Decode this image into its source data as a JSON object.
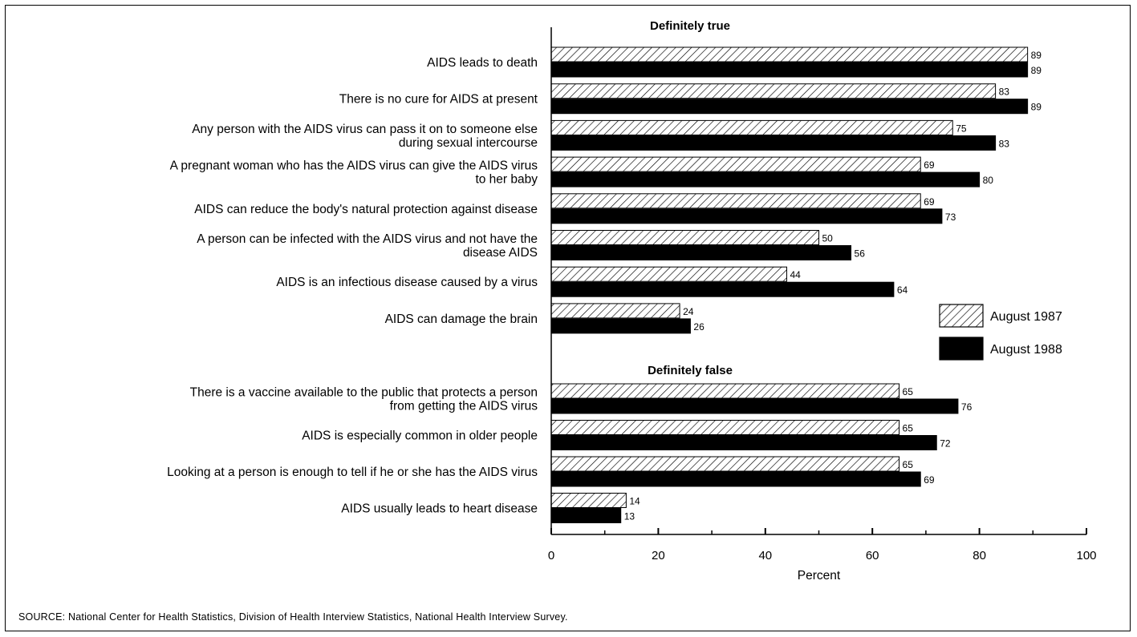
{
  "chart_data": {
    "type": "bar",
    "orientation": "horizontal",
    "xlabel": "Percent",
    "xlim": [
      0,
      100
    ],
    "xticks": [
      "0",
      "20",
      "40",
      "60",
      "80",
      "100"
    ],
    "legend": {
      "placement": "right",
      "entries": [
        "August 1987",
        "August 1988"
      ]
    },
    "series": [
      {
        "name": "August 1987",
        "pattern": "hatched"
      },
      {
        "name": "August 1988",
        "pattern": "solid"
      }
    ],
    "groups": [
      {
        "title": "Definitely true",
        "items": [
          {
            "label": [
              "AIDS leads to death"
            ],
            "values": [
              89,
              89
            ]
          },
          {
            "label": [
              "There is no cure for AIDS at present"
            ],
            "values": [
              83,
              89
            ]
          },
          {
            "label": [
              "Any person with the AIDS virus can pass it on to someone else",
              "during sexual intercourse"
            ],
            "values": [
              75,
              83
            ]
          },
          {
            "label": [
              "A pregnant woman who has the AIDS virus can give the AIDS virus",
              "to her baby"
            ],
            "values": [
              69,
              80
            ]
          },
          {
            "label": [
              "AIDS can reduce the body's natural protection against disease"
            ],
            "values": [
              69,
              73
            ]
          },
          {
            "label": [
              "A person can be infected with the AIDS virus and not have the",
              "disease AIDS"
            ],
            "values": [
              50,
              56
            ]
          },
          {
            "label": [
              "AIDS is an infectious disease caused by a virus"
            ],
            "values": [
              44,
              64
            ]
          },
          {
            "label": [
              "AIDS can damage the brain"
            ],
            "values": [
              24,
              26
            ]
          }
        ]
      },
      {
        "title": "Definitely false",
        "items": [
          {
            "label": [
              "There is a vaccine available to the public that protects a person",
              "from getting the AIDS virus"
            ],
            "values": [
              65,
              76
            ]
          },
          {
            "label": [
              "AIDS is especially common in older people"
            ],
            "values": [
              65,
              72
            ]
          },
          {
            "label": [
              "Looking at a person is enough to tell if he or she has the AIDS virus"
            ],
            "values": [
              65,
              69
            ]
          },
          {
            "label": [
              "AIDS usually leads to heart disease"
            ],
            "values": [
              14,
              13
            ]
          }
        ]
      }
    ]
  },
  "source_note": "SOURCE: National Center for Health Statistics, Division of Health Interview Statistics, National Health Interview Survey."
}
